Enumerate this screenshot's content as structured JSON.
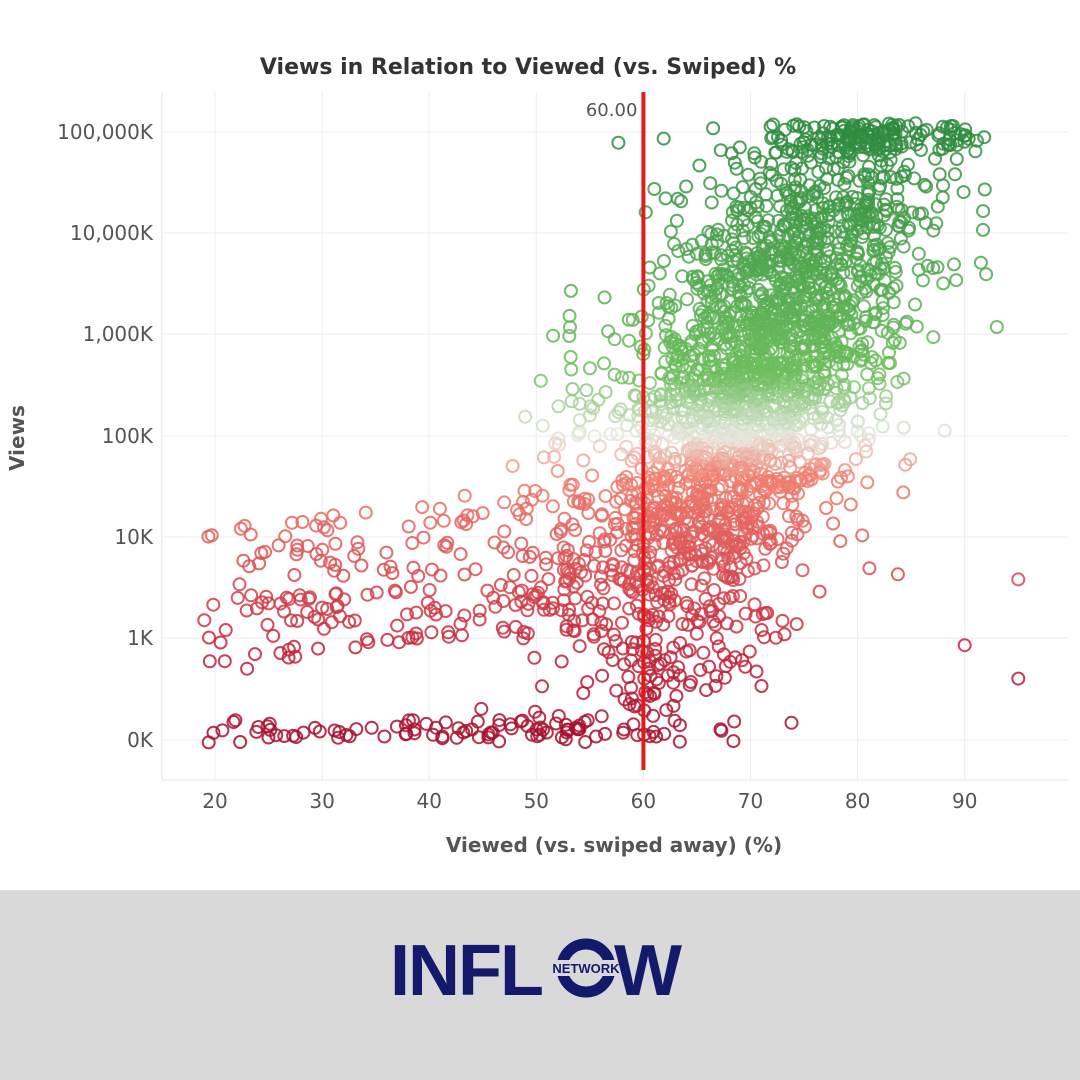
{
  "chart_data": {
    "type": "scatter",
    "title": "Views in Relation to Viewed (vs. Swiped) %",
    "xlabel": "Viewed (vs. swiped away) (%)",
    "ylabel": "Views",
    "x_ticks": [
      "20",
      "30",
      "40",
      "50",
      "60",
      "70",
      "80",
      "90"
    ],
    "y_ticks": [
      "0K",
      "1K",
      "10K",
      "100K",
      "1,000K",
      "10,000K",
      "100,000K"
    ],
    "xlim": [
      15,
      100
    ],
    "y_scale": "log",
    "grid": true,
    "reference_line": {
      "value": 60,
      "label": "60.00",
      "color": "#e31a1c"
    },
    "marker": "hollow-circle",
    "color_gradient": {
      "low": "#a50f2d",
      "mid": "#f08070",
      "high": "#2e8b3e"
    },
    "points_note": "approximately 3000 points, dense cluster between 60 and 85 percent",
    "sample_points": [
      {
        "x": 19,
        "y": 1.5
      },
      {
        "x": 21,
        "y": 1.2
      },
      {
        "x": 23,
        "y": 0.5
      },
      {
        "x": 25,
        "y": 2.2
      },
      {
        "x": 28,
        "y": 2.4
      },
      {
        "x": 30,
        "y": 2.0
      },
      {
        "x": 33,
        "y": 6.5
      },
      {
        "x": 36,
        "y": 7.0
      },
      {
        "x": 41,
        "y": 19
      },
      {
        "x": 43,
        "y": 14
      },
      {
        "x": 47,
        "y": 22
      },
      {
        "x": 52,
        "y": 45
      },
      {
        "x": 55,
        "y": 160
      },
      {
        "x": 58,
        "y": 380
      },
      {
        "x": 62,
        "y": 750
      },
      {
        "x": 66,
        "y": 3400
      },
      {
        "x": 69,
        "y": 72000
      },
      {
        "x": 74,
        "y": 118000
      },
      {
        "x": 78,
        "y": 58000
      },
      {
        "x": 82,
        "y": 28000
      },
      {
        "x": 86,
        "y": 16000
      },
      {
        "x": 89,
        "y": 5000
      },
      {
        "x": 92,
        "y": 4000
      },
      {
        "x": 93,
        "y": 1200
      },
      {
        "x": 95,
        "y": 3.8
      },
      {
        "x": 95,
        "y": 0.4
      },
      {
        "x": 90,
        "y": 0.85
      }
    ]
  },
  "logo": {
    "text_left": "INFL",
    "text_ring_small": "NETWORK",
    "text_right": "W",
    "color": "#131a6b"
  }
}
